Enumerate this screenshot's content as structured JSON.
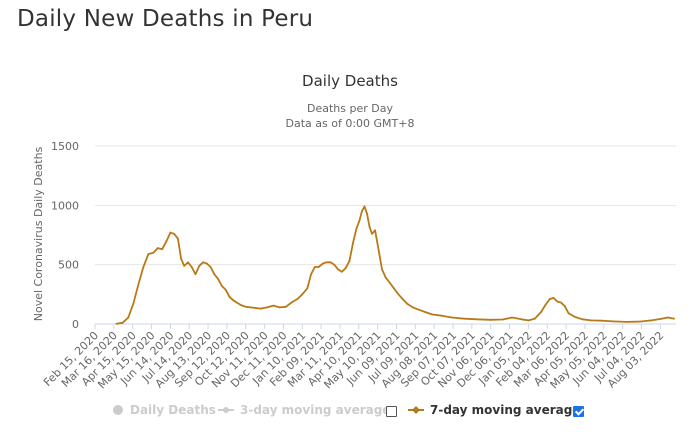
{
  "page": {
    "title": "Daily New Deaths in Peru"
  },
  "legend": {
    "items": [
      {
        "label": "Daily Deaths",
        "enabled": false
      },
      {
        "label": "3-day moving average",
        "enabled": false
      },
      {
        "label": "7-day moving average",
        "enabled": true
      }
    ]
  },
  "colors": {
    "series": "#b87a18",
    "grid": "#e6e6e6",
    "axis": "#ccd6eb",
    "disabled": "#cccccc",
    "checkbox": "#1a73e8"
  },
  "chart_data": {
    "type": "line",
    "title": "Daily Deaths",
    "subtitle_lines": [
      "Deaths per Day",
      "Data as of 0:00 GMT+8"
    ],
    "ylabel": "Novel Coronavirus Daily Deaths",
    "xlabel": "",
    "ylim": [
      0,
      1500
    ],
    "yticks": [
      0,
      500,
      1000,
      1500
    ],
    "grid": true,
    "legend_position": "bottom",
    "xlim": [
      "2020-02-15",
      "2022-08-28"
    ],
    "xtick_labels": [
      "Feb 15, 2020",
      "Mar 16, 2020",
      "Apr 15, 2020",
      "May 15, 2020",
      "Jun 14, 2020",
      "Jul 14, 2020",
      "Aug 13, 2020",
      "Sep 12, 2020",
      "Oct 12, 2020",
      "Nov 11, 2020",
      "Dec 11, 2020",
      "Jan 10, 2021",
      "Feb 09, 2021",
      "Mar 11, 2021",
      "Apr 10, 2021",
      "May 10, 2021",
      "Jun 09, 2021",
      "Jul 09, 2021",
      "Aug 08, 2021",
      "Sep 07, 2021",
      "Oct 07, 2021",
      "Nov 06, 2021",
      "Dec 06, 2021",
      "Jan 05, 2022",
      "Feb 04, 2022",
      "Mar 06, 2022",
      "Apr 05, 2022",
      "May 05, 2022",
      "Jun 04, 2022",
      "Jul 04, 2022",
      "Aug 03, 2022"
    ],
    "series": [
      {
        "name": "7-day moving average",
        "x": [
          "2020-03-20",
          "2020-03-30",
          "2020-04-08",
          "2020-04-16",
          "2020-04-24",
          "2020-05-02",
          "2020-05-10",
          "2020-05-18",
          "2020-05-25",
          "2020-06-01",
          "2020-06-08",
          "2020-06-14",
          "2020-06-20",
          "2020-06-26",
          "2020-07-01",
          "2020-07-06",
          "2020-07-12",
          "2020-07-18",
          "2020-07-24",
          "2020-07-30",
          "2020-08-05",
          "2020-08-11",
          "2020-08-17",
          "2020-08-23",
          "2020-08-29",
          "2020-09-04",
          "2020-09-10",
          "2020-09-16",
          "2020-09-22",
          "2020-09-28",
          "2020-10-04",
          "2020-10-12",
          "2020-10-20",
          "2020-10-28",
          "2020-11-05",
          "2020-11-15",
          "2020-11-25",
          "2020-12-05",
          "2020-12-15",
          "2020-12-25",
          "2021-01-02",
          "2021-01-10",
          "2021-01-18",
          "2021-01-24",
          "2021-01-30",
          "2021-02-05",
          "2021-02-12",
          "2021-02-18",
          "2021-02-24",
          "2021-03-02",
          "2021-03-08",
          "2021-03-14",
          "2021-03-20",
          "2021-03-26",
          "2021-04-01",
          "2021-04-06",
          "2021-04-11",
          "2021-04-15",
          "2021-04-19",
          "2021-04-23",
          "2021-04-27",
          "2021-05-01",
          "2021-05-06",
          "2021-05-11",
          "2021-05-17",
          "2021-05-23",
          "2021-05-29",
          "2021-06-05",
          "2021-06-12",
          "2021-06-19",
          "2021-06-26",
          "2021-07-05",
          "2021-07-15",
          "2021-07-25",
          "2021-08-05",
          "2021-08-20",
          "2021-09-05",
          "2021-09-25",
          "2021-10-15",
          "2021-11-05",
          "2021-11-25",
          "2021-12-10",
          "2021-12-25",
          "2022-01-05",
          "2022-01-15",
          "2022-01-25",
          "2022-02-01",
          "2022-02-08",
          "2022-02-14",
          "2022-02-20",
          "2022-02-26",
          "2022-03-04",
          "2022-03-10",
          "2022-03-20",
          "2022-04-01",
          "2022-04-15",
          "2022-05-01",
          "2022-05-20",
          "2022-06-10",
          "2022-07-01",
          "2022-07-20",
          "2022-08-05",
          "2022-08-15",
          "2022-08-25"
        ],
        "values": [
          2,
          10,
          55,
          170,
          330,
          480,
          590,
          600,
          640,
          630,
          700,
          770,
          760,
          720,
          550,
          490,
          520,
          480,
          420,
          490,
          520,
          510,
          480,
          420,
          380,
          320,
          290,
          230,
          200,
          180,
          160,
          145,
          140,
          135,
          130,
          140,
          155,
          140,
          145,
          185,
          210,
          250,
          300,
          420,
          480,
          480,
          510,
          520,
          520,
          500,
          460,
          440,
          470,
          530,
          690,
          800,
          870,
          950,
          990,
          930,
          820,
          760,
          790,
          640,
          460,
          390,
          350,
          300,
          250,
          210,
          170,
          140,
          120,
          100,
          80,
          70,
          55,
          45,
          40,
          35,
          38,
          55,
          40,
          30,
          45,
          100,
          160,
          210,
          220,
          190,
          180,
          150,
          90,
          60,
          40,
          30,
          28,
          22,
          18,
          20,
          30,
          45,
          55,
          45
        ]
      }
    ]
  }
}
